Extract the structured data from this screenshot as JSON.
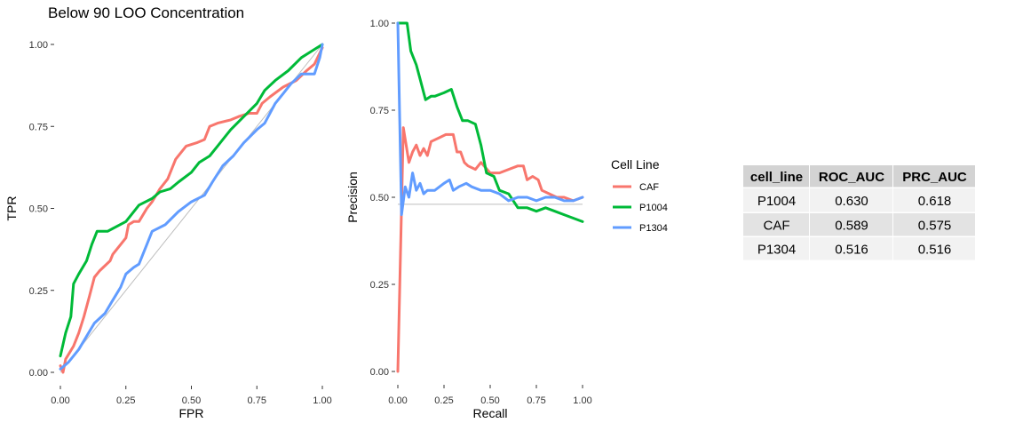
{
  "title": "Below 90 LOO Concentration",
  "colors": {
    "CAF": "#F8766D",
    "P1004": "#00BA38",
    "P1304": "#619CFF",
    "reference": "#BEBEBE"
  },
  "chart_data": [
    {
      "type": "line",
      "id": "roc",
      "xlabel": "FPR",
      "ylabel": "TPR",
      "xlim": [
        0,
        1
      ],
      "ylim": [
        0,
        1
      ],
      "xticks": [
        "0.00",
        "0.25",
        "0.50",
        "0.75",
        "1.00"
      ],
      "yticks": [
        "0.00",
        "0.25",
        "0.50",
        "0.75",
        "1.00"
      ],
      "reference_line": [
        [
          0,
          0
        ],
        [
          1,
          1
        ]
      ],
      "series": [
        {
          "name": "CAF",
          "points": [
            [
              0.0,
              0.02
            ],
            [
              0.01,
              0.0
            ],
            [
              0.02,
              0.04
            ],
            [
              0.05,
              0.08
            ],
            [
              0.07,
              0.12
            ],
            [
              0.09,
              0.17
            ],
            [
              0.11,
              0.23
            ],
            [
              0.13,
              0.29
            ],
            [
              0.15,
              0.31
            ],
            [
              0.19,
              0.34
            ],
            [
              0.2,
              0.36
            ],
            [
              0.23,
              0.39
            ],
            [
              0.25,
              0.41
            ],
            [
              0.26,
              0.45
            ],
            [
              0.28,
              0.46
            ],
            [
              0.3,
              0.46
            ],
            [
              0.33,
              0.5
            ],
            [
              0.35,
              0.52
            ],
            [
              0.38,
              0.56
            ],
            [
              0.41,
              0.59
            ],
            [
              0.44,
              0.65
            ],
            [
              0.48,
              0.69
            ],
            [
              0.52,
              0.7
            ],
            [
              0.55,
              0.71
            ],
            [
              0.57,
              0.75
            ],
            [
              0.6,
              0.76
            ],
            [
              0.65,
              0.77
            ],
            [
              0.68,
              0.78
            ],
            [
              0.72,
              0.79
            ],
            [
              0.75,
              0.79
            ],
            [
              0.77,
              0.82
            ],
            [
              0.8,
              0.84
            ],
            [
              0.85,
              0.87
            ],
            [
              0.9,
              0.89
            ],
            [
              0.94,
              0.92
            ],
            [
              0.97,
              0.94
            ],
            [
              1.0,
              0.99
            ]
          ]
        },
        {
          "name": "P1004",
          "points": [
            [
              0.0,
              0.05
            ],
            [
              0.02,
              0.12
            ],
            [
              0.04,
              0.17
            ],
            [
              0.05,
              0.27
            ],
            [
              0.07,
              0.3
            ],
            [
              0.1,
              0.34
            ],
            [
              0.12,
              0.39
            ],
            [
              0.14,
              0.43
            ],
            [
              0.18,
              0.43
            ],
            [
              0.25,
              0.46
            ],
            [
              0.3,
              0.51
            ],
            [
              0.35,
              0.53
            ],
            [
              0.38,
              0.55
            ],
            [
              0.42,
              0.56
            ],
            [
              0.45,
              0.58
            ],
            [
              0.5,
              0.61
            ],
            [
              0.53,
              0.64
            ],
            [
              0.57,
              0.66
            ],
            [
              0.6,
              0.69
            ],
            [
              0.65,
              0.74
            ],
            [
              0.7,
              0.78
            ],
            [
              0.75,
              0.82
            ],
            [
              0.78,
              0.86
            ],
            [
              0.82,
              0.89
            ],
            [
              0.87,
              0.92
            ],
            [
              0.92,
              0.96
            ],
            [
              0.96,
              0.98
            ],
            [
              1.0,
              1.0
            ]
          ]
        },
        {
          "name": "P1304",
          "points": [
            [
              0.0,
              0.01
            ],
            [
              0.03,
              0.03
            ],
            [
              0.05,
              0.05
            ],
            [
              0.07,
              0.07
            ],
            [
              0.1,
              0.11
            ],
            [
              0.13,
              0.15
            ],
            [
              0.17,
              0.18
            ],
            [
              0.2,
              0.22
            ],
            [
              0.23,
              0.26
            ],
            [
              0.25,
              0.3
            ],
            [
              0.28,
              0.32
            ],
            [
              0.3,
              0.33
            ],
            [
              0.33,
              0.39
            ],
            [
              0.35,
              0.43
            ],
            [
              0.4,
              0.45
            ],
            [
              0.45,
              0.49
            ],
            [
              0.5,
              0.52
            ],
            [
              0.55,
              0.54
            ],
            [
              0.58,
              0.58
            ],
            [
              0.62,
              0.63
            ],
            [
              0.66,
              0.66
            ],
            [
              0.7,
              0.7
            ],
            [
              0.75,
              0.74
            ],
            [
              0.78,
              0.76
            ],
            [
              0.82,
              0.82
            ],
            [
              0.85,
              0.85
            ],
            [
              0.88,
              0.88
            ],
            [
              0.92,
              0.91
            ],
            [
              0.97,
              0.91
            ],
            [
              0.99,
              0.96
            ],
            [
              1.0,
              1.0
            ]
          ]
        }
      ]
    },
    {
      "type": "line",
      "id": "prc",
      "xlabel": "Recall",
      "ylabel": "Precision",
      "xlim": [
        0,
        1
      ],
      "ylim": [
        0,
        1
      ],
      "xticks": [
        "0.00",
        "0.25",
        "0.50",
        "0.75",
        "1.00"
      ],
      "yticks": [
        "0.00",
        "0.25",
        "0.50",
        "0.75",
        "1.00"
      ],
      "baseline": 0.48,
      "series": [
        {
          "name": "CAF",
          "points": [
            [
              0.0,
              0.0
            ],
            [
              0.03,
              0.7
            ],
            [
              0.06,
              0.6
            ],
            [
              0.08,
              0.63
            ],
            [
              0.1,
              0.65
            ],
            [
              0.12,
              0.62
            ],
            [
              0.14,
              0.64
            ],
            [
              0.16,
              0.62
            ],
            [
              0.18,
              0.66
            ],
            [
              0.22,
              0.67
            ],
            [
              0.26,
              0.68
            ],
            [
              0.3,
              0.68
            ],
            [
              0.32,
              0.63
            ],
            [
              0.34,
              0.63
            ],
            [
              0.36,
              0.6
            ],
            [
              0.38,
              0.59
            ],
            [
              0.42,
              0.58
            ],
            [
              0.45,
              0.6
            ],
            [
              0.5,
              0.57
            ],
            [
              0.55,
              0.57
            ],
            [
              0.6,
              0.58
            ],
            [
              0.65,
              0.59
            ],
            [
              0.68,
              0.59
            ],
            [
              0.7,
              0.55
            ],
            [
              0.73,
              0.56
            ],
            [
              0.76,
              0.55
            ],
            [
              0.78,
              0.52
            ],
            [
              0.82,
              0.51
            ],
            [
              0.86,
              0.5
            ],
            [
              0.9,
              0.5
            ],
            [
              0.95,
              0.49
            ],
            [
              1.0,
              0.5
            ]
          ]
        },
        {
          "name": "P1004",
          "points": [
            [
              0.0,
              1.0
            ],
            [
              0.05,
              1.0
            ],
            [
              0.07,
              0.92
            ],
            [
              0.1,
              0.88
            ],
            [
              0.12,
              0.84
            ],
            [
              0.15,
              0.78
            ],
            [
              0.18,
              0.79
            ],
            [
              0.2,
              0.79
            ],
            [
              0.25,
              0.8
            ],
            [
              0.29,
              0.81
            ],
            [
              0.32,
              0.76
            ],
            [
              0.35,
              0.72
            ],
            [
              0.38,
              0.72
            ],
            [
              0.42,
              0.71
            ],
            [
              0.45,
              0.65
            ],
            [
              0.48,
              0.57
            ],
            [
              0.52,
              0.56
            ],
            [
              0.55,
              0.52
            ],
            [
              0.6,
              0.51
            ],
            [
              0.65,
              0.47
            ],
            [
              0.7,
              0.47
            ],
            [
              0.75,
              0.46
            ],
            [
              0.8,
              0.47
            ],
            [
              0.85,
              0.46
            ],
            [
              0.9,
              0.45
            ],
            [
              0.95,
              0.44
            ],
            [
              1.0,
              0.43
            ]
          ]
        },
        {
          "name": "P1304",
          "points": [
            [
              0.0,
              1.0
            ],
            [
              0.02,
              0.45
            ],
            [
              0.04,
              0.53
            ],
            [
              0.06,
              0.5
            ],
            [
              0.08,
              0.57
            ],
            [
              0.1,
              0.52
            ],
            [
              0.12,
              0.54
            ],
            [
              0.14,
              0.51
            ],
            [
              0.16,
              0.52
            ],
            [
              0.2,
              0.52
            ],
            [
              0.25,
              0.54
            ],
            [
              0.28,
              0.55
            ],
            [
              0.3,
              0.52
            ],
            [
              0.33,
              0.53
            ],
            [
              0.37,
              0.54
            ],
            [
              0.4,
              0.53
            ],
            [
              0.45,
              0.52
            ],
            [
              0.5,
              0.52
            ],
            [
              0.55,
              0.51
            ],
            [
              0.6,
              0.49
            ],
            [
              0.65,
              0.5
            ],
            [
              0.7,
              0.5
            ],
            [
              0.75,
              0.49
            ],
            [
              0.8,
              0.5
            ],
            [
              0.85,
              0.5
            ],
            [
              0.9,
              0.49
            ],
            [
              0.95,
              0.49
            ],
            [
              1.0,
              0.5
            ]
          ]
        }
      ]
    }
  ],
  "legend": {
    "title": "Cell Line",
    "items": [
      {
        "name": "CAF",
        "color": "#F8766D"
      },
      {
        "name": "P1004",
        "color": "#00BA38"
      },
      {
        "name": "P1304",
        "color": "#619CFF"
      }
    ]
  },
  "table": {
    "headers": [
      "cell_line",
      "ROC_AUC",
      "PRC_AUC"
    ],
    "rows": [
      [
        "P1004",
        "0.630",
        "0.618"
      ],
      [
        "CAF",
        "0.589",
        "0.575"
      ],
      [
        "P1304",
        "0.516",
        "0.516"
      ]
    ]
  }
}
